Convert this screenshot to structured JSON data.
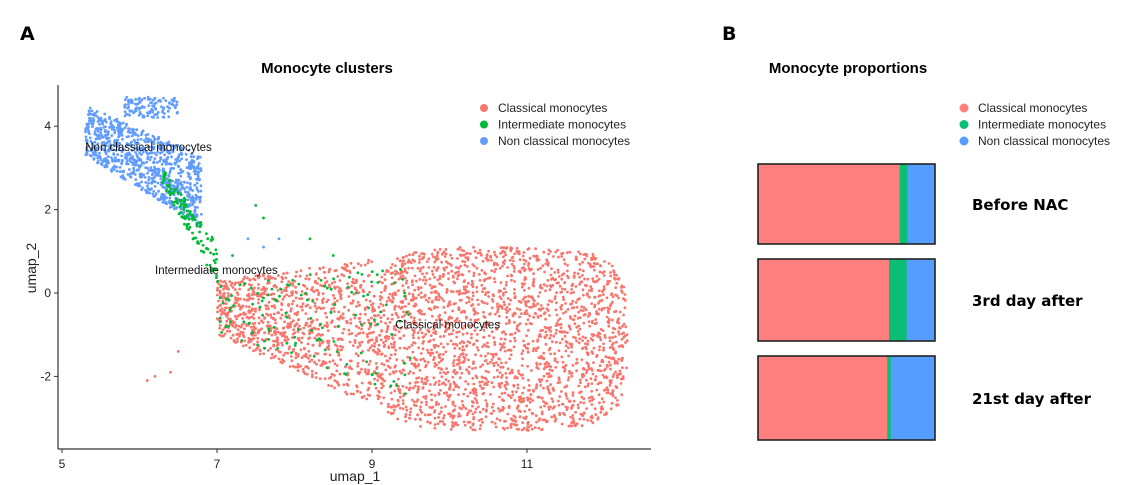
{
  "panels": {
    "a": "A",
    "b": "B"
  },
  "chart_data": [
    {
      "type": "scatter",
      "title": "Monocyte clusters",
      "xlabel": "umap_1",
      "ylabel": "umap_2",
      "xlim": [
        4.95,
        12.5
      ],
      "ylim": [
        -3.7,
        5.0
      ],
      "xticks": [
        "5",
        "7",
        "9",
        "11"
      ],
      "xtick_values": [
        5,
        7,
        9,
        11
      ],
      "yticks": [
        "4",
        "2",
        "0",
        "-2"
      ],
      "ytick_values": [
        4,
        2,
        0,
        -2
      ],
      "legend_position": "top-right",
      "series": [
        {
          "name": "Classical monocytes",
          "color": "#F8766D",
          "regions": [
            {
              "x": [
                9.0,
                12.3
              ],
              "y": [
                -3.3,
                1.1
              ],
              "count": 2200,
              "shape": "blob"
            },
            {
              "x": [
                7.0,
                9.0
              ],
              "y_low": [
                -1.0,
                -2.7
              ],
              "y_high": [
                0.3,
                0.8
              ],
              "count": 900,
              "shape": "band"
            }
          ],
          "outliers": [
            [
              6.1,
              -2.1
            ],
            [
              6.2,
              -2.0
            ],
            [
              6.4,
              -1.9
            ],
            [
              6.5,
              -1.4
            ]
          ]
        },
        {
          "name": "Intermediate monocytes",
          "color": "#00BA38",
          "regions": [
            {
              "x": [
                6.3,
                7.0
              ],
              "y_low": [
                2.6,
                0.2
              ],
              "y_high": [
                3.0,
                1.2
              ],
              "count": 130,
              "shape": "band"
            },
            {
              "x": [
                7.0,
                9.5
              ],
              "y_low": [
                -1.0,
                -2.5
              ],
              "y_high": [
                0.3,
                0.6
              ],
              "count": 130,
              "shape": "band"
            }
          ],
          "outliers": [
            [
              7.5,
              2.1
            ],
            [
              7.6,
              1.8
            ],
            [
              8.2,
              1.3
            ],
            [
              8.5,
              0.9
            ],
            [
              7.2,
              0.9
            ]
          ]
        },
        {
          "name": "Non classical monocytes",
          "color": "#619CFF",
          "regions": [
            {
              "x": [
                5.3,
                6.8
              ],
              "y_low": [
                3.3,
                1.6
              ],
              "y_high": [
                4.5,
                3.3
              ],
              "count": 850,
              "shape": "band"
            },
            {
              "x": [
                5.8,
                6.5
              ],
              "y_low": [
                4.2,
                4.2
              ],
              "y_high": [
                4.7,
                4.7
              ],
              "count": 120,
              "shape": "band"
            }
          ],
          "outliers": [
            [
              7.4,
              1.3
            ],
            [
              7.6,
              1.1
            ],
            [
              7.8,
              1.3
            ]
          ]
        }
      ],
      "cluster_labels": [
        {
          "text": "Non classical monocytes",
          "x": 5.3,
          "y": 3.4
        },
        {
          "text": "Intermediate monocytes",
          "x": 6.2,
          "y": 0.45
        },
        {
          "text": "Classical monocytes",
          "x": 9.3,
          "y": -0.85
        }
      ]
    },
    {
      "type": "bar",
      "orientation": "horizontal-stacked-proportion",
      "title": "Monocyte proportions",
      "categories": [
        "Before NAC",
        "3rd day after",
        "21st day after"
      ],
      "legend_position": "top-right",
      "series": [
        {
          "name": "Classical monocytes",
          "color": "#FF7F7F",
          "values": [
            0.8,
            0.74,
            0.73
          ]
        },
        {
          "name": "Intermediate monocytes",
          "color": "#0ABF74",
          "values": [
            0.045,
            0.1,
            0.02
          ]
        },
        {
          "name": "Non classical monocytes",
          "color": "#559EFF",
          "values": [
            0.155,
            0.16,
            0.25
          ]
        }
      ]
    }
  ]
}
